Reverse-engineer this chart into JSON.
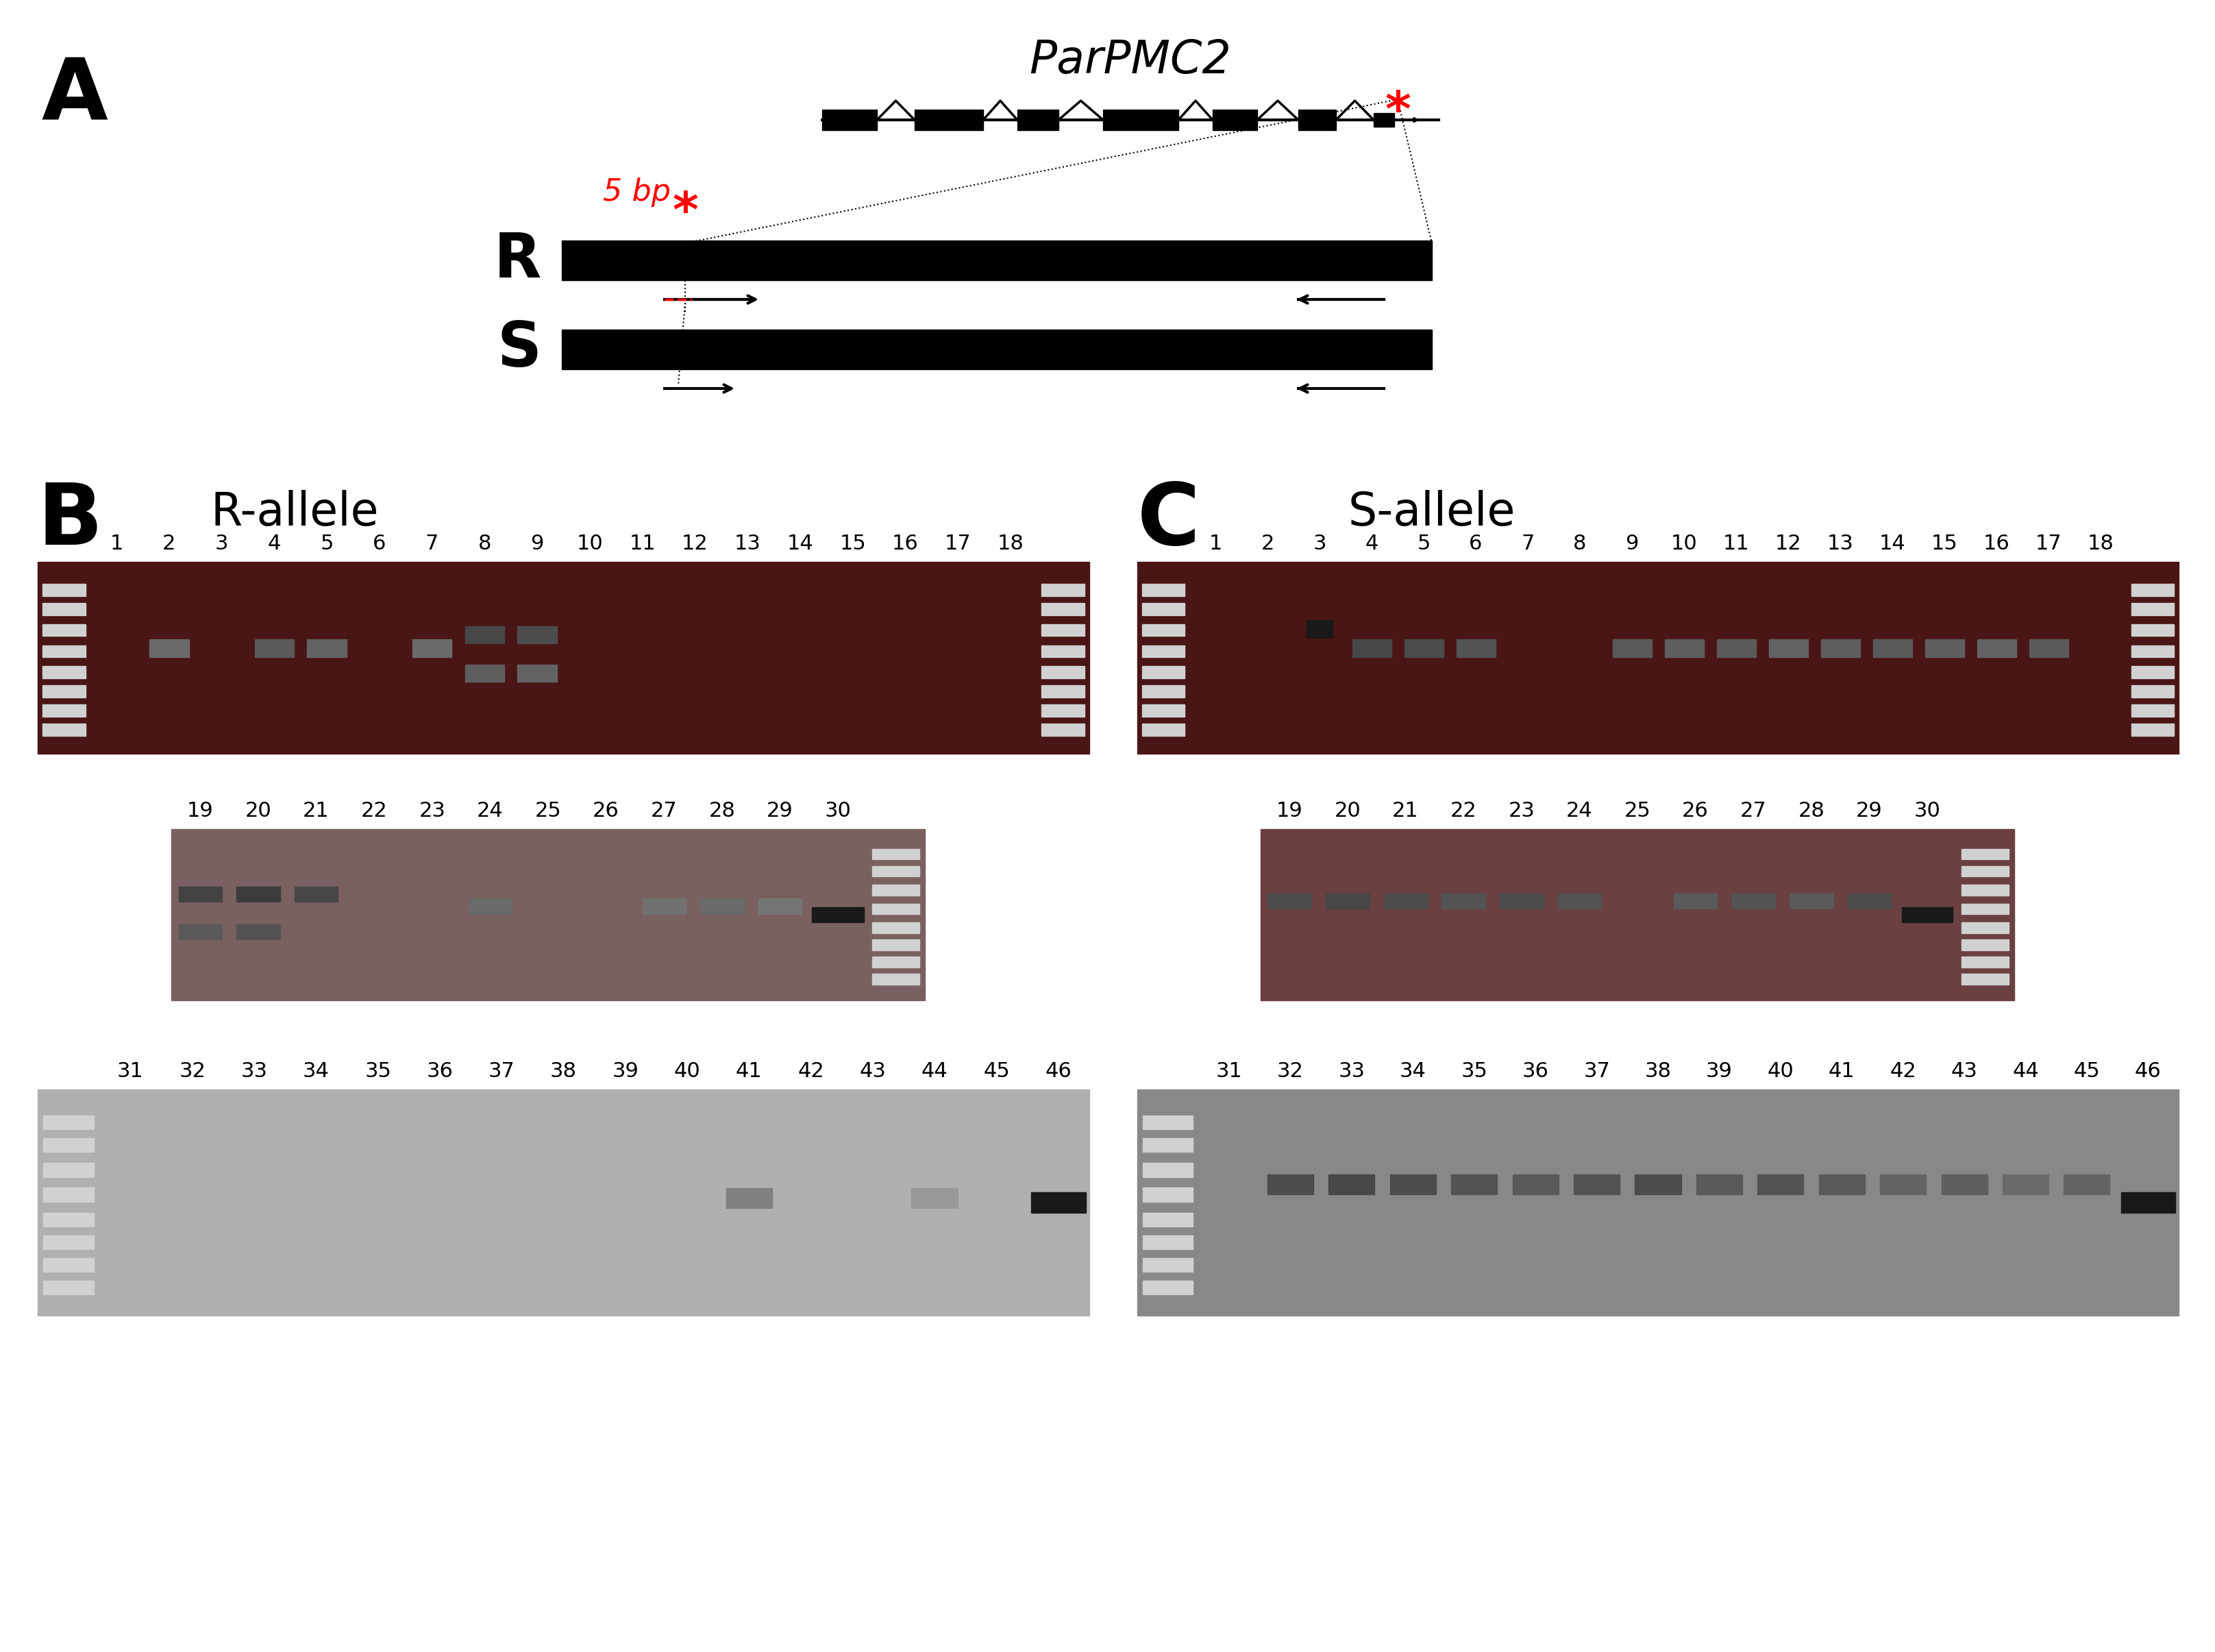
{
  "panel_A_label": "A",
  "panel_B_label": "B",
  "panel_C_label": "C",
  "gene_label": "ParPMC2",
  "R_label": "R",
  "S_label": "S",
  "5bp_label": "5 bp",
  "R_allele_label": "R-allele",
  "S_allele_label": "S-allele",
  "label_color_5bp": "#ff0000",
  "star_color": "#ff0000",
  "bg_color": "#ffffff",
  "gel_bg_row1": "#4a1515",
  "gel_bg_row2_B": "#7a6a6a",
  "gel_bg_row2_C": "#6a4a4a",
  "gel_bg_row3_B": "#aaaaaa",
  "gel_bg_row3_C": "#888888"
}
